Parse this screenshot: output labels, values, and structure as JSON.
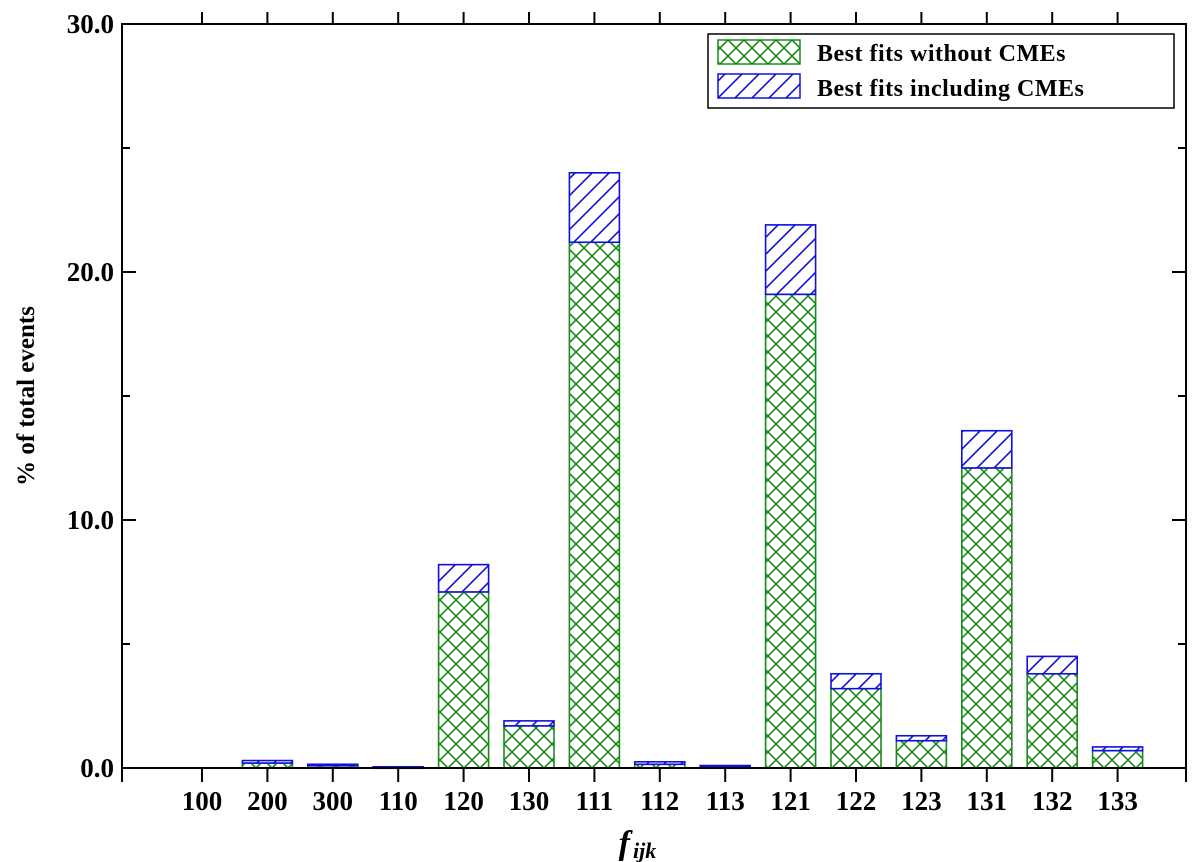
{
  "chart_data": {
    "type": "bar",
    "stacked": true,
    "categories": [
      "100",
      "200",
      "300",
      "110",
      "120",
      "130",
      "111",
      "112",
      "113",
      "121",
      "122",
      "123",
      "131",
      "132",
      "133"
    ],
    "series": [
      {
        "name": "Best fits without CMEs",
        "color": "#1a8a1a",
        "pattern": "crosshatch",
        "values": [
          0.0,
          0.2,
          0.1,
          0.0,
          7.1,
          1.7,
          21.2,
          0.15,
          0.05,
          19.1,
          3.2,
          1.1,
          12.1,
          3.8,
          0.7
        ]
      },
      {
        "name": "Best fits including CMEs",
        "color": "#1010dd",
        "pattern": "diagonal",
        "values": [
          0.0,
          0.1,
          0.05,
          0.05,
          1.1,
          0.2,
          2.8,
          0.1,
          0.05,
          2.8,
          0.6,
          0.2,
          1.5,
          0.7,
          0.15
        ]
      }
    ],
    "xlabel": "f",
    "xlabel_sub": "ijk",
    "ylabel": "% of total events",
    "ylim": [
      0,
      30
    ],
    "yticks": [
      "0.0",
      "10.0",
      "20.0",
      "30.0"
    ],
    "ytick_values": [
      0,
      10,
      20,
      30
    ],
    "legend_position": "top-right",
    "grid": false
  }
}
